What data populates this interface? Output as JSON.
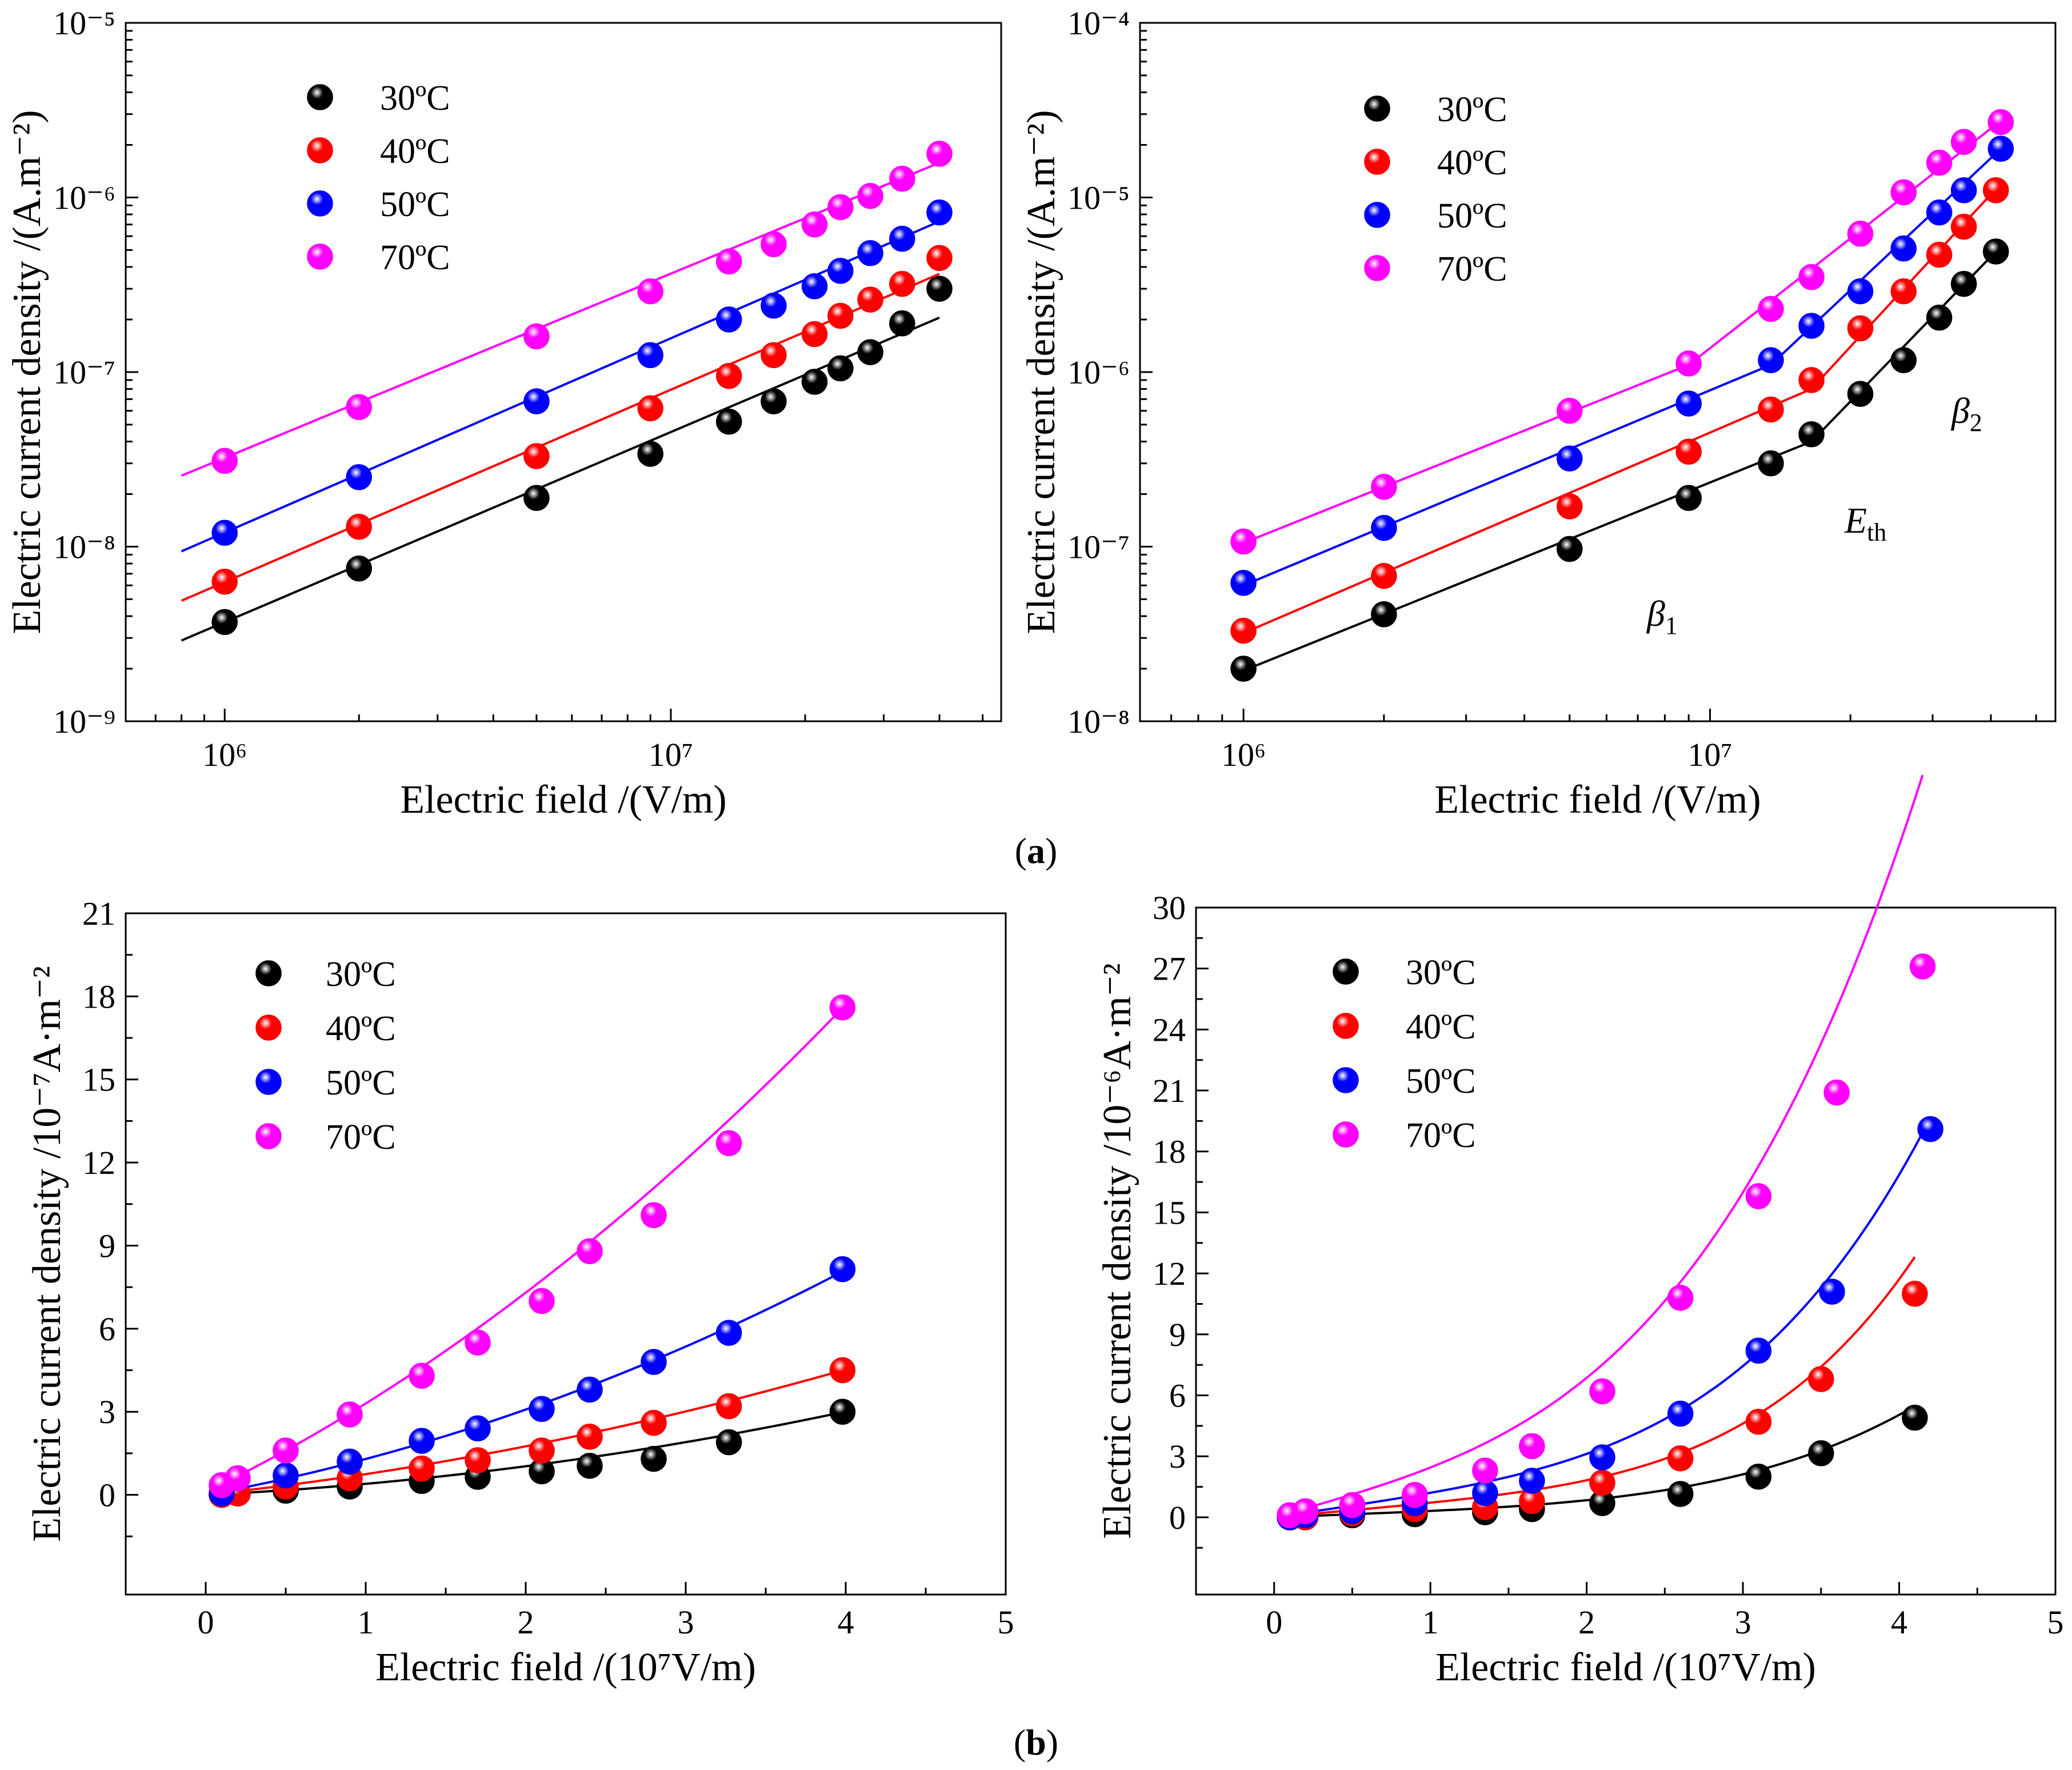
{
  "panel_labels": {
    "a": "a",
    "b": "b"
  },
  "annotations": {
    "beta1": {
      "base": "β",
      "sub": "1"
    },
    "eth": {
      "base": "E",
      "sub": "th"
    },
    "beta2": {
      "base": "β",
      "sub": "2"
    }
  },
  "colors": {
    "30ºC": "#000000",
    "40ºC": "#ff0000",
    "50ºC": "#0000ff",
    "70ºC": "#ff00ff"
  },
  "chart_data": [
    {
      "type": "scatter",
      "xscale": "log",
      "yscale": "log",
      "xlabel": "Electric field /(V/m)",
      "ylabel": "Electric current density /(A.m⁻²)",
      "xlim": [
        600000.0,
        55000000.0
      ],
      "ylim": [
        1e-09,
        1e-05
      ],
      "x_ticks": [
        "10⁶",
        "10⁷"
      ],
      "y_ticks": [
        "10⁻⁹",
        "10⁻⁸",
        "10⁻⁷",
        "10⁻⁶",
        "10⁻⁵"
      ],
      "legend": "top-left",
      "series": [
        {
          "name": "30ºC",
          "x": [
            1000000.0,
            2000000.0,
            5000000.0,
            9000000.0,
            13500000.0,
            17000000.0,
            21000000.0,
            24000000.0,
            28000000.0,
            33000000.0,
            40000000.0
          ],
          "y": [
            3.7e-09,
            7.5e-09,
            1.9e-08,
            3.4e-08,
            5.2e-08,
            6.8e-08,
            8.8e-08,
            1.05e-07,
            1.3e-07,
            1.9e-07,
            3e-07
          ],
          "fit": {
            "x": [
              800000.0,
              40000000.0
            ],
            "y": [
              2.9e-09,
              2.05e-07
            ]
          }
        },
        {
          "name": "40ºC",
          "x": [
            1000000.0,
            2000000.0,
            5000000.0,
            9000000.0,
            13500000.0,
            17000000.0,
            21000000.0,
            24000000.0,
            28000000.0,
            33000000.0,
            40000000.0
          ],
          "y": [
            6.3e-09,
            1.3e-08,
            3.3e-08,
            6.2e-08,
            9.5e-08,
            1.25e-07,
            1.65e-07,
            2.1e-07,
            2.6e-07,
            3.2e-07,
            4.5e-07
          ],
          "fit": {
            "x": [
              800000.0,
              40000000.0
            ],
            "y": [
              4.9e-09,
              3.65e-07
            ]
          }
        },
        {
          "name": "50ºC",
          "x": [
            1000000.0,
            2000000.0,
            5000000.0,
            9000000.0,
            13500000.0,
            17000000.0,
            21000000.0,
            24000000.0,
            28000000.0,
            33000000.0,
            40000000.0
          ],
          "y": [
            1.2e-08,
            2.5e-08,
            6.8e-08,
            1.25e-07,
            2e-07,
            2.4e-07,
            3.1e-07,
            3.8e-07,
            4.8e-07,
            5.8e-07,
            8.2e-07
          ],
          "fit": {
            "x": [
              800000.0,
              40000000.0
            ],
            "y": [
              9.4e-09,
              7.3e-07
            ]
          }
        },
        {
          "name": "70ºC",
          "x": [
            1000000.0,
            2000000.0,
            5000000.0,
            9000000.0,
            13500000.0,
            17000000.0,
            21000000.0,
            24000000.0,
            28000000.0,
            33000000.0,
            40000000.0
          ],
          "y": [
            3.1e-08,
            6.3e-08,
            1.6e-07,
            2.9e-07,
            4.3e-07,
            5.4e-07,
            7e-07,
            8.8e-07,
            1.02e-06,
            1.28e-06,
            1.78e-06
          ],
          "fit": {
            "x": [
              800000.0,
              40000000.0
            ],
            "y": [
              2.55e-08,
              1.58e-06
            ]
          }
        }
      ]
    },
    {
      "type": "scatter",
      "xscale": "log",
      "yscale": "log",
      "xlabel": "Electric field /(V/m)",
      "ylabel": "Electric current density /(A.m⁻²)",
      "xlim": [
        600000.0,
        55000000.0
      ],
      "ylim": [
        1e-08,
        0.0001
      ],
      "x_ticks": [
        "10⁶",
        "10⁷"
      ],
      "y_ticks": [
        "10⁻⁸",
        "10⁻⁷",
        "10⁻⁶",
        "10⁻⁵",
        "10⁻⁴"
      ],
      "legend": "top-left",
      "series": [
        {
          "name": "30ºC",
          "x": [
            1000000.0,
            2000000.0,
            5000000.0,
            9000000.0,
            13500000.0,
            16500000.0,
            21000000.0,
            26000000.0,
            31000000.0,
            35000000.0,
            41000000.0
          ],
          "y": [
            2e-08,
            4.1e-08,
            9.7e-08,
            1.9e-07,
            3e-07,
            4.4e-07,
            7.5e-07,
            1.17e-06,
            2.05e-06,
            3.2e-06,
            4.9e-06
          ],
          "fit": {
            "x": [
              1000000.0,
              16500000.0,
              41000000.0
            ],
            "y": [
              1.95e-08,
              4e-07,
              4.9e-06
            ]
          }
        },
        {
          "name": "40ºC",
          "x": [
            1000000.0,
            2000000.0,
            5000000.0,
            9000000.0,
            13500000.0,
            16500000.0,
            21000000.0,
            26000000.0,
            31000000.0,
            35000000.0,
            41000000.0
          ],
          "y": [
            3.3e-08,
            6.8e-08,
            1.7e-07,
            3.5e-07,
            6.1e-07,
            9e-07,
            1.78e-06,
            2.9e-06,
            4.7e-06,
            6.8e-06,
            1.1e-05
          ],
          "fit": {
            "x": [
              1000000.0,
              16500000.0,
              41000000.0
            ],
            "y": [
              3.2e-08,
              8e-07,
              1.12e-05
            ]
          }
        },
        {
          "name": "50ºC",
          "x": [
            1000000.0,
            2000000.0,
            5000000.0,
            9000000.0,
            13500000.0,
            16500000.0,
            21000000.0,
            26000000.0,
            31000000.0,
            35000000.0,
            42000000.0
          ],
          "y": [
            6.2e-08,
            1.28e-07,
            3.2e-07,
            6.6e-07,
            1.17e-06,
            1.84e-06,
            2.9e-06,
            5.1e-06,
            8.2e-06,
            1.1e-05,
            1.9e-05
          ],
          "fit": {
            "x": [
              1000000.0,
              13500000.0,
              42000000.0
            ],
            "y": [
              6e-08,
              1.1e-06,
              1.9e-05
            ]
          }
        },
        {
          "name": "70ºC",
          "x": [
            1000000.0,
            2000000.0,
            5000000.0,
            9000000.0,
            13500000.0,
            16500000.0,
            21000000.0,
            26000000.0,
            31000000.0,
            35000000.0,
            42000000.0
          ],
          "y": [
            1.07e-07,
            2.2e-07,
            6e-07,
            1.12e-06,
            2.3e-06,
            3.5e-06,
            6.2e-06,
            1.07e-05,
            1.58e-05,
            2.08e-05,
            2.7e-05
          ],
          "fit": {
            "x": [
              1000000.0,
              9000000.0,
              42000000.0
            ],
            "y": [
              1.05e-07,
              1.1e-06,
              2.75e-05
            ]
          }
        }
      ]
    },
    {
      "type": "scatter",
      "xscale": "linear",
      "yscale": "linear",
      "xlabel": "Electric field /(10⁷V/m)",
      "ylabel": "Electric current density /10⁻⁷A·m⁻²",
      "xlim": [
        -0.5,
        5
      ],
      "ylim": [
        -3.6,
        21
      ],
      "x_ticks": [
        "0",
        "1",
        "2",
        "3",
        "4",
        "5"
      ],
      "y_ticks": [
        "0",
        "3",
        "6",
        "9",
        "12",
        "15",
        "18",
        "21"
      ],
      "legend": "top-left",
      "series": [
        {
          "name": "30ºC",
          "x": [
            0.1,
            0.2,
            0.5,
            0.9,
            1.35,
            1.7,
            2.1,
            2.4,
            2.8,
            3.27,
            3.98
          ],
          "y": [
            0.0,
            0.05,
            0.15,
            0.3,
            0.5,
            0.65,
            0.85,
            1.05,
            1.3,
            1.9,
            3.0
          ],
          "fit": {
            "a": 0.0,
            "b": 0.28,
            "c": 0.118
          }
        },
        {
          "name": "40ºC",
          "x": [
            0.1,
            0.2,
            0.5,
            0.9,
            1.35,
            1.7,
            2.1,
            2.4,
            2.8,
            3.27,
            3.98
          ],
          "y": [
            0.0,
            0.05,
            0.3,
            0.6,
            0.95,
            1.25,
            1.6,
            2.1,
            2.6,
            3.2,
            4.5
          ],
          "fit": {
            "a": 0.0,
            "b": 0.62,
            "c": 0.128
          }
        },
        {
          "name": "50ºC",
          "x": [
            0.1,
            0.5,
            0.9,
            1.35,
            1.7,
            2.1,
            2.4,
            2.8,
            3.27,
            3.98
          ],
          "y": [
            0.05,
            0.7,
            1.2,
            1.95,
            2.4,
            3.1,
            3.8,
            4.8,
            5.85,
            8.15
          ],
          "fit": {
            "a": 0.0,
            "b": 1.05,
            "c": 0.245
          }
        },
        {
          "name": "70ºC",
          "x": [
            0.1,
            0.2,
            0.5,
            0.9,
            1.35,
            1.7,
            2.1,
            2.4,
            2.8,
            3.27,
            3.98
          ],
          "y": [
            0.35,
            0.6,
            1.6,
            2.9,
            4.3,
            5.5,
            7.0,
            8.8,
            10.1,
            12.7,
            17.6
          ],
          "fit": {
            "a": 0.1,
            "b": 2.8,
            "c": 0.4
          }
        }
      ]
    },
    {
      "type": "scatter",
      "xscale": "linear",
      "yscale": "linear",
      "xlabel": "Electric field /(10⁷V/m)",
      "ylabel": "Electric current density /10⁻⁶A·m⁻²",
      "xlim": [
        -0.5,
        5
      ],
      "ylim": [
        -3.8,
        30
      ],
      "x_ticks": [
        "0",
        "1",
        "2",
        "3",
        "4",
        "5"
      ],
      "y_ticks": [
        "0",
        "3",
        "6",
        "9",
        "12",
        "15",
        "18",
        "21",
        "24",
        "27",
        "30"
      ],
      "legend": "top-left",
      "series": [
        {
          "name": "30ºC",
          "x": [
            0.1,
            0.2,
            0.5,
            0.9,
            1.35,
            1.65,
            2.1,
            2.6,
            3.1,
            3.5,
            4.1
          ],
          "y": [
            0.0,
            0.0,
            0.1,
            0.15,
            0.25,
            0.4,
            0.7,
            1.15,
            2.0,
            3.15,
            4.9
          ],
          "fit": {
            "a": 0.0,
            "b": 0.3,
            "c": 0.015,
            "d": 4.0,
            "x0": 0.1,
            "x1": 4.1
          }
        },
        {
          "name": "40ºC",
          "x": [
            0.1,
            0.2,
            0.5,
            0.9,
            1.35,
            1.65,
            2.1,
            2.6,
            3.1,
            3.5,
            4.1
          ],
          "y": [
            0.0,
            0.0,
            0.2,
            0.4,
            0.5,
            0.8,
            1.7,
            2.9,
            4.7,
            6.8,
            11.0
          ],
          "fit": {
            "a": 0.0,
            "b": 0.7,
            "c": 0.02,
            "d": 4.4,
            "x0": 0.1,
            "x1": 4.1
          }
        },
        {
          "name": "50ºC",
          "x": [
            0.1,
            0.2,
            0.5,
            0.9,
            1.35,
            1.65,
            2.1,
            2.6,
            3.1,
            3.57,
            4.2
          ],
          "y": [
            0.0,
            0.1,
            0.3,
            0.7,
            1.2,
            1.8,
            2.95,
            5.1,
            8.2,
            11.1,
            19.1
          ],
          "fit": {
            "a": 0.0,
            "b": 1.15,
            "c": 0.055,
            "d": 3.9,
            "x0": 0.1,
            "x1": 4.2
          }
        },
        {
          "name": "70ºC",
          "x": [
            0.1,
            0.2,
            0.5,
            0.9,
            1.35,
            1.65,
            2.1,
            2.6,
            3.1,
            3.6,
            4.15
          ],
          "y": [
            0.1,
            0.3,
            0.6,
            1.1,
            2.3,
            3.5,
            6.2,
            10.8,
            15.8,
            20.9,
            27.1
          ],
          "fit": {
            "a": 0.0,
            "b": 2.2,
            "c": 0.25,
            "d": 3.3,
            "x0": 0.1,
            "x1": 4.15
          }
        }
      ]
    }
  ]
}
